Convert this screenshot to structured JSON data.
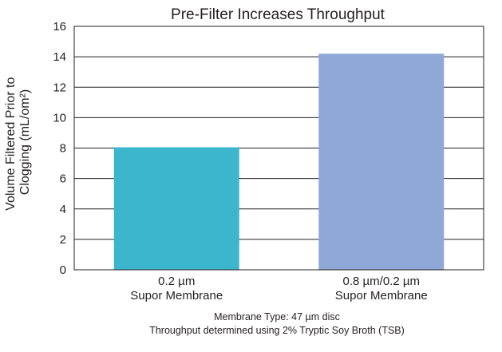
{
  "chart_data": {
    "type": "bar",
    "title": "Pre-Filter Increases Throughput",
    "ylabel": [
      "Volume Filtered Prior to",
      "Clogging (mL/om²)"
    ],
    "xlabel": "",
    "categories": [
      [
        "0.2 µm",
        "Supor Membrane"
      ],
      [
        "0.8 µm/0.2 µm",
        "Supor Membrane"
      ]
    ],
    "values": [
      8.05,
      14.2
    ],
    "colors": [
      "#3bb6cc",
      "#8ea8d7"
    ],
    "ylim": [
      0,
      16
    ],
    "yticks": [
      0,
      2,
      4,
      6,
      8,
      10,
      12,
      14,
      16
    ],
    "grid": true,
    "notes": [
      "Membrane Type: 47 µm disc",
      "Throughput determined using 2% Tryptic Soy Broth (TSB)"
    ]
  }
}
